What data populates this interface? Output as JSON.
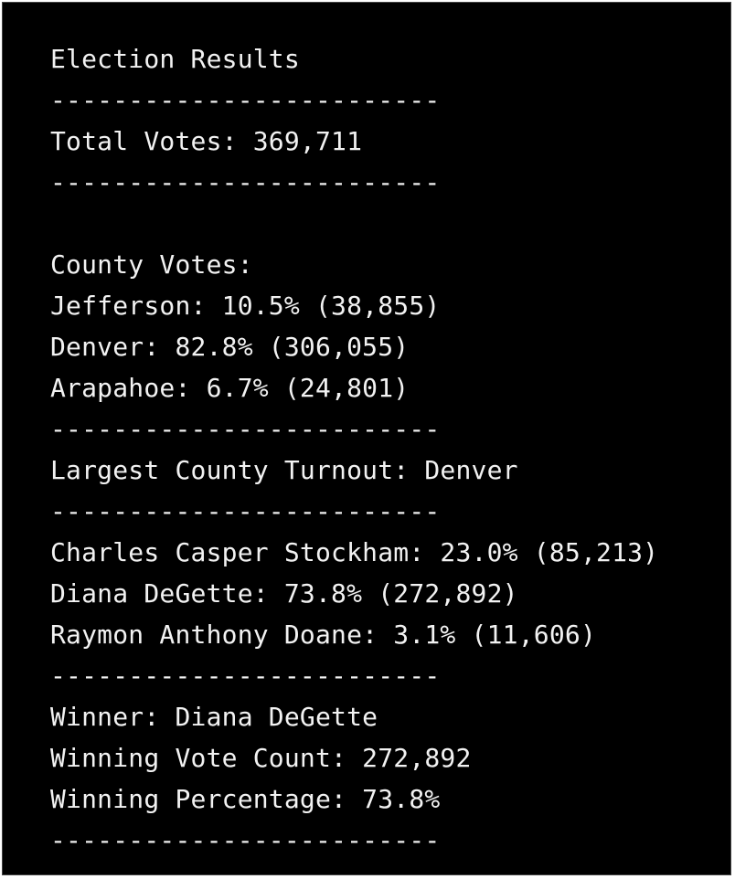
{
  "report": {
    "title": "Election Results",
    "divider": "-------------------------",
    "total_votes_line": "Total Votes: 369,711",
    "county_header": "County Votes:",
    "counties": [
      "Jefferson: 10.5% (38,855)",
      "Denver: 82.8% (306,055)",
      "Arapahoe: 6.7% (24,801)"
    ],
    "largest_county_line": "Largest County Turnout: Denver",
    "candidates": [
      "Charles Casper Stockham: 23.0% (85,213)",
      "Diana DeGette: 73.8% (272,892)",
      "Raymon Anthony Doane: 3.1% (11,606)"
    ],
    "winner_line": "Winner: Diana DeGette",
    "winning_vote_count_line": "Winning Vote Count: 272,892",
    "winning_percentage_line": "Winning Percentage: 73.8%"
  },
  "colors": {
    "background": "#000000",
    "text": "#f2f2f2"
  }
}
